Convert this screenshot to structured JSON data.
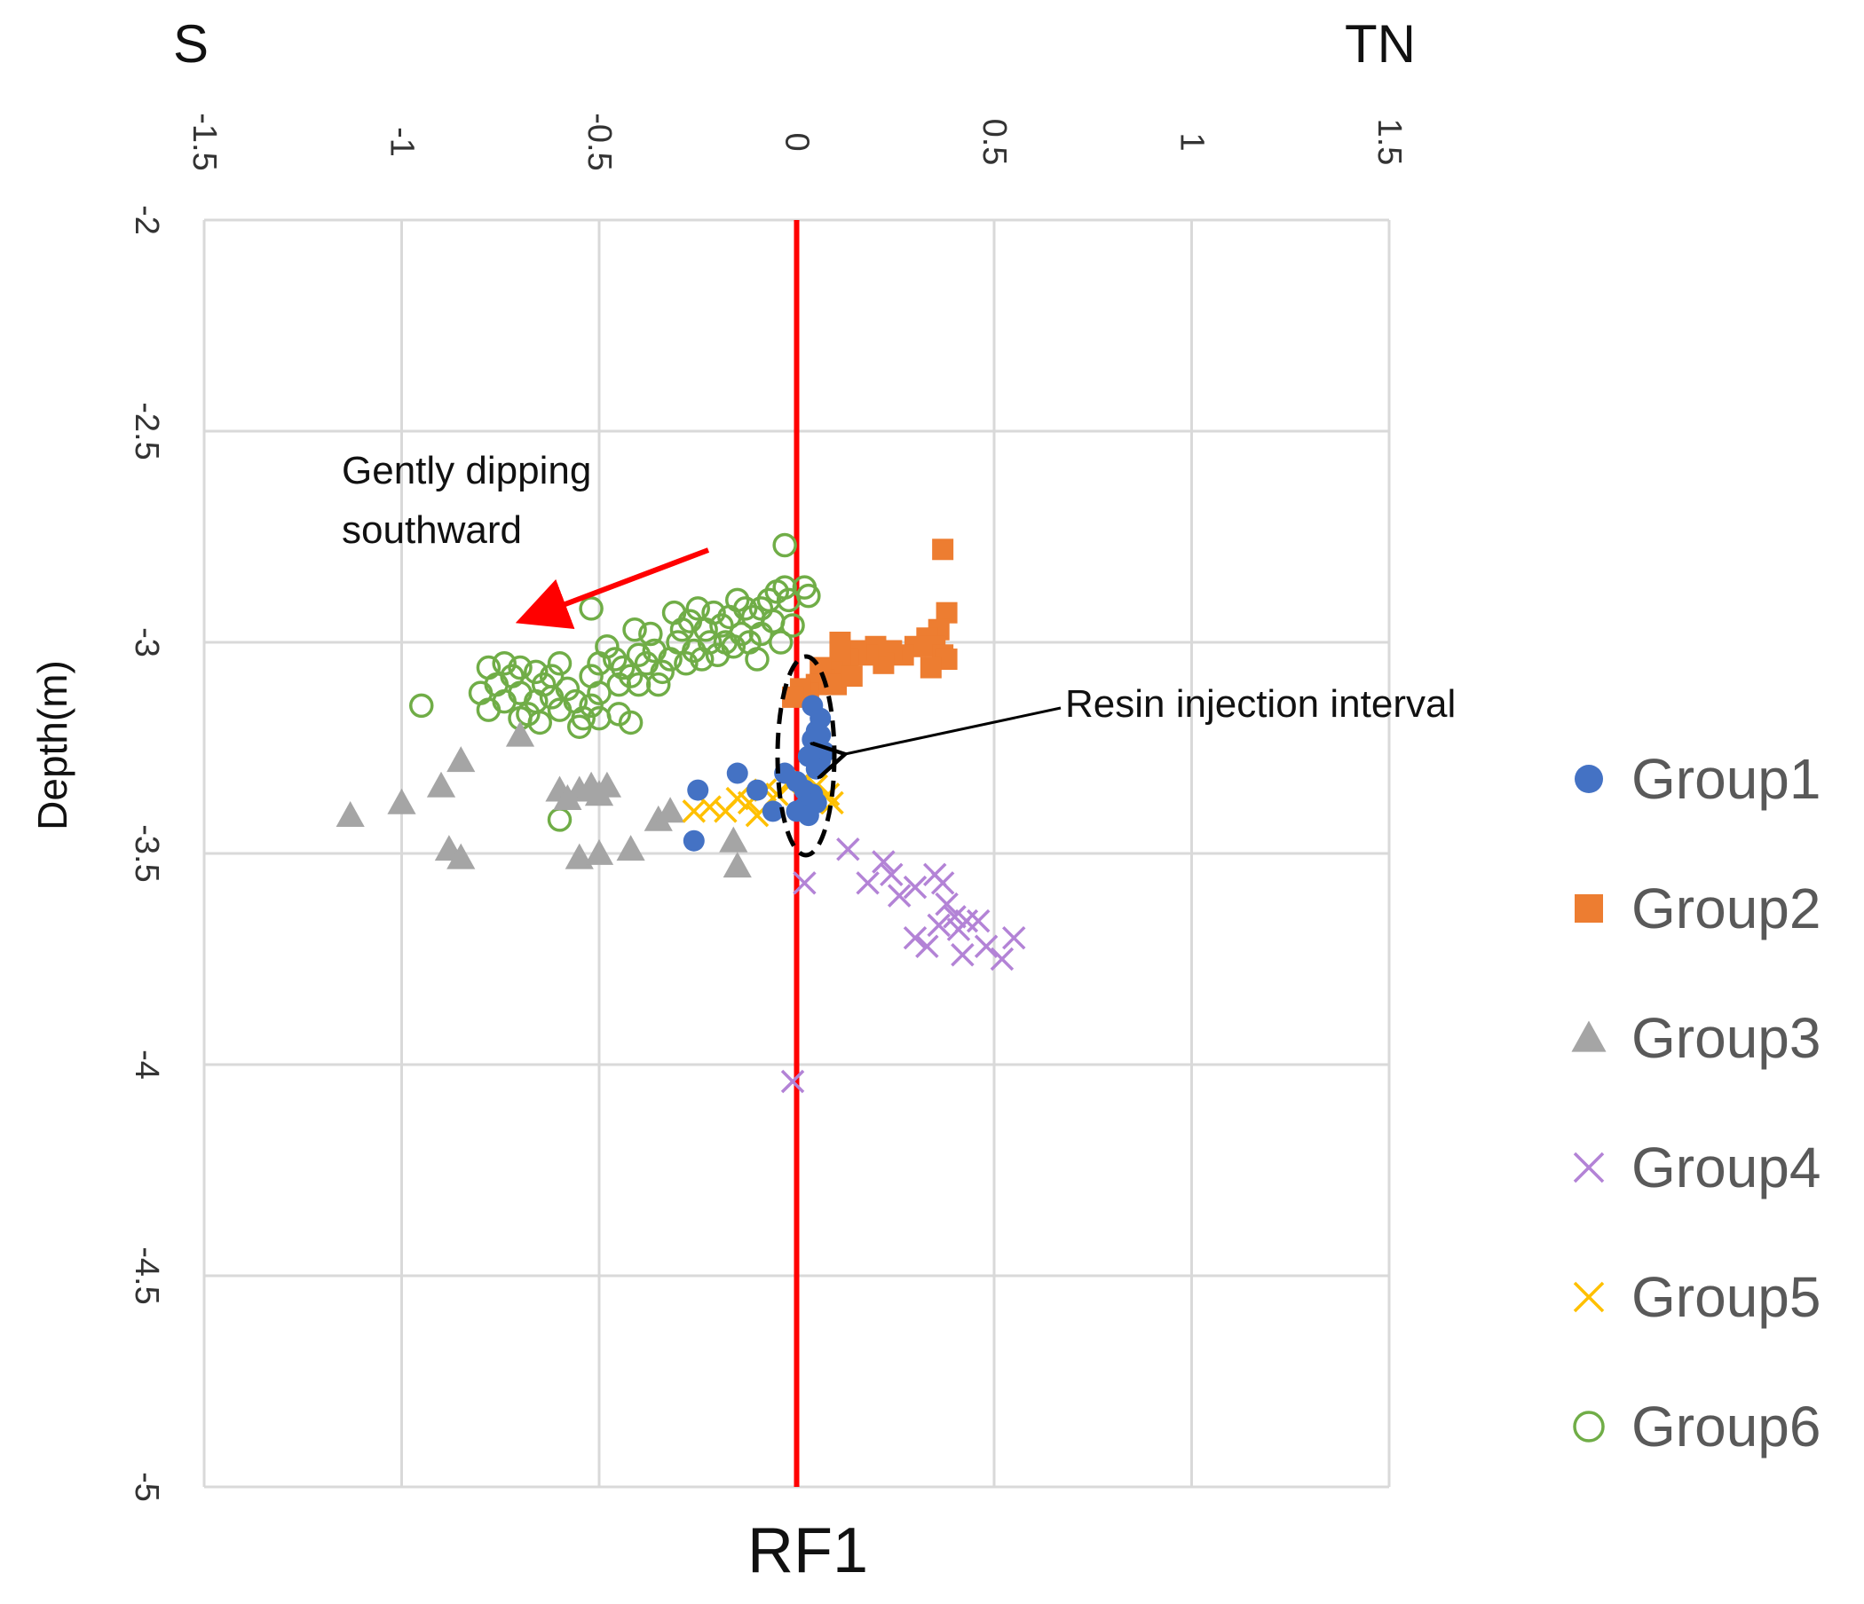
{
  "chart_data": {
    "type": "scatter",
    "title": "",
    "xlabel": "RF1",
    "ylabel": "Depth(m)",
    "left_direction_label": "S",
    "right_direction_label": "TN",
    "xlim": [
      -1.5,
      1.5
    ],
    "ylim": [
      -5,
      -2
    ],
    "x_ticks": [
      "-1.5",
      "-1",
      "-0.5",
      "0",
      "0.5",
      "1",
      "1.5"
    ],
    "x_tick_values": [
      -1.5,
      -1,
      -0.5,
      0,
      0.5,
      1,
      1.5
    ],
    "y_ticks": [
      "-2",
      "-2.5",
      "-3",
      "-3.5",
      "-4",
      "-4.5",
      "-5"
    ],
    "y_tick_values": [
      -2,
      -2.5,
      -3,
      -3.5,
      -4,
      -4.5,
      -5
    ],
    "x_axis_position": "top",
    "grid": true,
    "reference_line": {
      "x": 0,
      "color": "#ff0000"
    },
    "legend_position": "right",
    "annotations": [
      {
        "id": "dip",
        "text_lines": [
          "Gently dipping",
          "southward"
        ],
        "arrow_color": "#ff0000"
      },
      {
        "id": "resin",
        "text": "Resin injection interval",
        "arrow_color": "#000000"
      }
    ],
    "series": [
      {
        "name": "Group1",
        "marker": "circle",
        "color": "#4472c4",
        "points": [
          [
            0.04,
            -3.15
          ],
          [
            0.06,
            -3.18
          ],
          [
            0.05,
            -3.21
          ],
          [
            0.04,
            -3.23
          ],
          [
            0.05,
            -3.25
          ],
          [
            0.07,
            -3.26
          ],
          [
            0.06,
            -3.28
          ],
          [
            0.05,
            -3.3
          ],
          [
            0.06,
            -3.22
          ],
          [
            0.03,
            -3.27
          ],
          [
            -0.03,
            -3.31
          ],
          [
            0.0,
            -3.33
          ],
          [
            0.02,
            -3.35
          ],
          [
            0.04,
            -3.36
          ],
          [
            0.05,
            -3.38
          ],
          [
            0.02,
            -3.39
          ],
          [
            0.0,
            -3.4
          ],
          [
            0.03,
            -3.41
          ],
          [
            -0.1,
            -3.35
          ],
          [
            -0.15,
            -3.31
          ],
          [
            -0.25,
            -3.35
          ],
          [
            -0.26,
            -3.47
          ],
          [
            -0.06,
            -3.4
          ]
        ]
      },
      {
        "name": "Group2",
        "marker": "square",
        "color": "#ed7d31",
        "points": [
          [
            0.37,
            -2.78
          ],
          [
            0.38,
            -2.93
          ],
          [
            0.36,
            -2.97
          ],
          [
            0.33,
            -2.99
          ],
          [
            0.35,
            -3.01
          ],
          [
            0.37,
            -3.03
          ],
          [
            0.38,
            -3.04
          ],
          [
            0.34,
            -3.06
          ],
          [
            0.3,
            -3.01
          ],
          [
            0.27,
            -3.03
          ],
          [
            0.24,
            -3.02
          ],
          [
            0.22,
            -3.05
          ],
          [
            0.2,
            -3.01
          ],
          [
            0.18,
            -3.03
          ],
          [
            0.15,
            -3.02
          ],
          [
            0.13,
            -3.04
          ],
          [
            0.11,
            -3.05
          ],
          [
            0.09,
            -3.07
          ],
          [
            0.07,
            -3.09
          ],
          [
            0.06,
            -3.06
          ],
          [
            0.05,
            -3.1
          ],
          [
            0.1,
            -3.1
          ],
          [
            0.03,
            -3.12
          ],
          [
            0.01,
            -3.11
          ],
          [
            -0.01,
            -3.13
          ],
          [
            0.11,
            -3.0
          ],
          [
            0.14,
            -3.08
          ]
        ]
      },
      {
        "name": "Group3",
        "marker": "triangle",
        "color": "#a5a5a5",
        "points": [
          [
            -1.13,
            -3.41
          ],
          [
            -1.0,
            -3.38
          ],
          [
            -0.9,
            -3.34
          ],
          [
            -0.85,
            -3.28
          ],
          [
            -0.7,
            -3.22
          ],
          [
            -0.88,
            -3.49
          ],
          [
            -0.85,
            -3.51
          ],
          [
            -0.6,
            -3.35
          ],
          [
            -0.58,
            -3.37
          ],
          [
            -0.55,
            -3.35
          ],
          [
            -0.52,
            -3.34
          ],
          [
            -0.5,
            -3.36
          ],
          [
            -0.48,
            -3.34
          ],
          [
            -0.55,
            -3.51
          ],
          [
            -0.5,
            -3.5
          ],
          [
            -0.42,
            -3.49
          ],
          [
            -0.35,
            -3.42
          ],
          [
            -0.32,
            -3.4
          ],
          [
            -0.16,
            -3.47
          ],
          [
            -0.15,
            -3.53
          ]
        ]
      },
      {
        "name": "Group4",
        "marker": "x",
        "color": "#b383d6",
        "points": [
          [
            0.02,
            -3.57
          ],
          [
            0.13,
            -3.49
          ],
          [
            0.18,
            -3.57
          ],
          [
            0.22,
            -3.52
          ],
          [
            0.24,
            -3.55
          ],
          [
            0.26,
            -3.6
          ],
          [
            0.3,
            -3.58
          ],
          [
            0.35,
            -3.55
          ],
          [
            0.37,
            -3.57
          ],
          [
            0.38,
            -3.62
          ],
          [
            0.36,
            -3.67
          ],
          [
            0.4,
            -3.65
          ],
          [
            0.41,
            -3.68
          ],
          [
            0.43,
            -3.66
          ],
          [
            0.46,
            -3.66
          ],
          [
            0.48,
            -3.72
          ],
          [
            0.42,
            -3.74
          ],
          [
            0.52,
            -3.75
          ],
          [
            0.55,
            -3.7
          ],
          [
            0.3,
            -3.7
          ],
          [
            0.33,
            -3.72
          ],
          [
            -0.01,
            -4.04
          ]
        ]
      },
      {
        "name": "Group5",
        "marker": "x",
        "color": "#ffc000",
        "points": [
          [
            -0.26,
            -3.4
          ],
          [
            -0.22,
            -3.39
          ],
          [
            -0.18,
            -3.4
          ],
          [
            -0.15,
            -3.37
          ],
          [
            -0.12,
            -3.38
          ],
          [
            -0.08,
            -3.35
          ],
          [
            -0.05,
            -3.36
          ],
          [
            -0.02,
            -3.34
          ],
          [
            0.02,
            -3.33
          ],
          [
            0.05,
            -3.34
          ],
          [
            0.08,
            -3.36
          ],
          [
            0.09,
            -3.38
          ],
          [
            0.04,
            -3.38
          ],
          [
            -0.1,
            -3.41
          ]
        ]
      },
      {
        "name": "Group6",
        "marker": "open-circle",
        "color": "#70ad47",
        "points": [
          [
            -0.03,
            -2.77
          ],
          [
            0.02,
            -2.87
          ],
          [
            0.03,
            -2.89
          ],
          [
            -0.02,
            -2.9
          ],
          [
            -0.03,
            -2.87
          ],
          [
            -0.05,
            -2.88
          ],
          [
            -0.07,
            -2.9
          ],
          [
            -0.09,
            -2.92
          ],
          [
            -0.11,
            -2.94
          ],
          [
            -0.13,
            -2.92
          ],
          [
            -0.15,
            -2.9
          ],
          [
            -0.17,
            -2.94
          ],
          [
            -0.19,
            -2.96
          ],
          [
            -0.21,
            -2.93
          ],
          [
            -0.23,
            -2.97
          ],
          [
            -0.25,
            -2.92
          ],
          [
            -0.27,
            -2.95
          ],
          [
            -0.29,
            -2.97
          ],
          [
            -0.31,
            -2.93
          ],
          [
            -0.14,
            -2.98
          ],
          [
            -0.16,
            -3.01
          ],
          [
            -0.18,
            -3.0
          ],
          [
            -0.2,
            -3.03
          ],
          [
            -0.22,
            -3.0
          ],
          [
            -0.24,
            -3.04
          ],
          [
            -0.26,
            -3.02
          ],
          [
            -0.28,
            -3.05
          ],
          [
            -0.3,
            -3.0
          ],
          [
            -0.32,
            -3.04
          ],
          [
            -0.34,
            -3.07
          ],
          [
            -0.36,
            -3.02
          ],
          [
            -0.38,
            -3.05
          ],
          [
            -0.4,
            -3.03
          ],
          [
            -0.42,
            -3.08
          ],
          [
            -0.44,
            -3.06
          ],
          [
            -0.46,
            -3.04
          ],
          [
            -0.48,
            -3.01
          ],
          [
            -0.5,
            -3.05
          ],
          [
            -0.52,
            -3.08
          ],
          [
            -0.35,
            -3.1
          ],
          [
            -0.4,
            -3.1
          ],
          [
            -0.45,
            -3.1
          ],
          [
            -0.37,
            -2.98
          ],
          [
            -0.41,
            -2.97
          ],
          [
            -0.06,
            -2.95
          ],
          [
            -0.09,
            -2.98
          ],
          [
            -0.12,
            -3.0
          ],
          [
            -0.1,
            -3.04
          ],
          [
            -0.04,
            -3.0
          ],
          [
            -0.01,
            -2.96
          ],
          [
            -0.5,
            -3.12
          ],
          [
            -0.52,
            -3.15
          ],
          [
            -0.54,
            -3.18
          ],
          [
            -0.56,
            -3.14
          ],
          [
            -0.58,
            -3.11
          ],
          [
            -0.6,
            -3.16
          ],
          [
            -0.62,
            -3.13
          ],
          [
            -0.64,
            -3.1
          ],
          [
            -0.66,
            -3.14
          ],
          [
            -0.68,
            -3.17
          ],
          [
            -0.7,
            -3.12
          ],
          [
            -0.72,
            -3.08
          ],
          [
            -0.74,
            -3.14
          ],
          [
            -0.76,
            -3.1
          ],
          [
            -0.78,
            -3.16
          ],
          [
            -0.74,
            -3.05
          ],
          [
            -0.7,
            -3.06
          ],
          [
            -0.66,
            -3.07
          ],
          [
            -0.62,
            -3.08
          ],
          [
            -0.6,
            -3.05
          ],
          [
            -0.55,
            -3.2
          ],
          [
            -0.5,
            -3.18
          ],
          [
            -0.45,
            -3.17
          ],
          [
            -0.42,
            -3.19
          ],
          [
            -0.65,
            -3.19
          ],
          [
            -0.7,
            -3.18
          ],
          [
            -0.52,
            -2.92
          ],
          [
            -0.95,
            -3.15
          ],
          [
            -0.6,
            -3.42
          ],
          [
            -0.8,
            -3.12
          ],
          [
            -0.78,
            -3.06
          ]
        ]
      }
    ]
  }
}
